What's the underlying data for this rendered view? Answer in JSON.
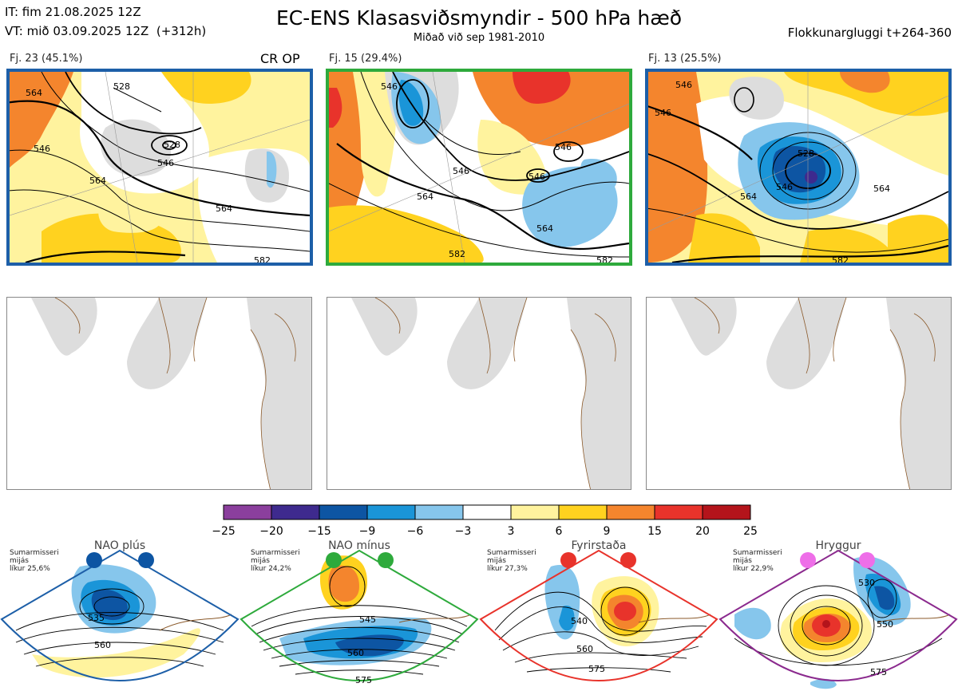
{
  "header": {
    "it": "IT: fim 21.08.2025 12Z",
    "vt": "VT: mið 03.09.2025 12Z  (+312h)",
    "title": "EC-ENS Klasasviðsmyndir - 500 hPa hæð",
    "subtitle": "Miðað við sep 1981-2010",
    "window": "Flokkunargluggi t+264-360"
  },
  "clusters": [
    {
      "label": "Fj. 23 (45.1%)",
      "members": 23,
      "percent": 45.1,
      "tag": "CR OP",
      "border_color": "#1d5fa8"
    },
    {
      "label": "Fj. 15 (29.4%)",
      "members": 15,
      "percent": 29.4,
      "tag": "",
      "border_color": "#2eaa3c"
    },
    {
      "label": "Fj. 13 (25.5%)",
      "members": 13,
      "percent": 25.5,
      "tag": "",
      "border_color": "#1d5fa8"
    }
  ],
  "contour_labels": {
    "cluster1": [
      "528",
      "528",
      "546",
      "546",
      "564",
      "564",
      "564",
      "582"
    ],
    "cluster2": [
      "546",
      "546",
      "546",
      "546",
      "564",
      "564",
      "582",
      "582"
    ],
    "cluster3": [
      "528",
      "546",
      "546",
      "546",
      "564",
      "564",
      "582"
    ]
  },
  "colorbar": {
    "ticks": [
      "−25",
      "−20",
      "−15",
      "−9",
      "−6",
      "−3",
      "3",
      "6",
      "9",
      "15",
      "20",
      "25"
    ],
    "colors": [
      "#8b3f9d",
      "#3e2a8e",
      "#0d55a3",
      "#1a95d8",
      "#86c6ec",
      "#ffffff",
      "#fff39e",
      "#ffd21f",
      "#f4852d",
      "#e8332b",
      "#b4141b"
    ]
  },
  "regimes": [
    {
      "name": "NAO plús",
      "note": "Sumarmisseri\nmijás\nlíkur 25,6%",
      "probability": 25.6,
      "color": "#1d5fa8",
      "dot_color": "#0d55a3",
      "labels": [
        "535",
        "560"
      ]
    },
    {
      "name": "NAO mínus",
      "note": "Sumarmisseri\nmijás\nlíkur 24,2%",
      "probability": 24.2,
      "color": "#2eaa3c",
      "dot_color": "#2eaa3c",
      "labels": [
        "545",
        "560",
        "575"
      ]
    },
    {
      "name": "Fyrirstaða",
      "note": "Sumarmisseri\nmijás\nlíkur 27,3%",
      "probability": 27.3,
      "color": "#e8332b",
      "dot_color": "#e8332b",
      "labels": [
        "540",
        "560",
        "575"
      ]
    },
    {
      "name": "Hryggur",
      "note": "Sumarmisseri\nmijás\nlíkur 22,9%",
      "probability": 22.9,
      "color": "#8b2a8e",
      "dot_color": "#ee6ee8",
      "labels": [
        "530",
        "550",
        "575"
      ]
    }
  ]
}
